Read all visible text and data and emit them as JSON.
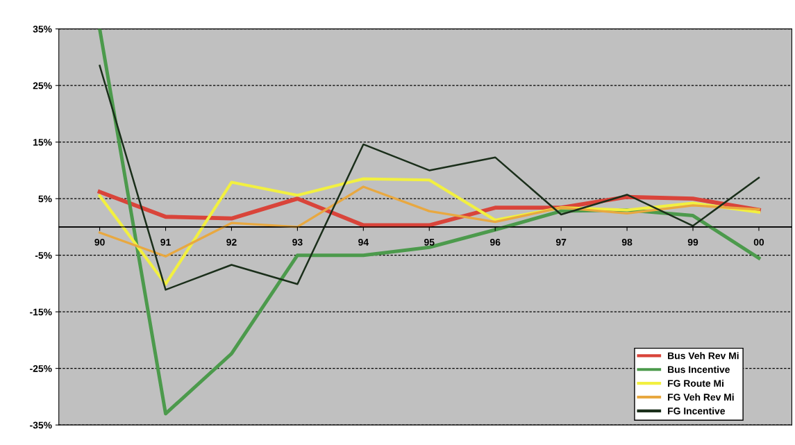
{
  "chart_data": {
    "type": "line",
    "categories": [
      "90",
      "91",
      "92",
      "93",
      "94",
      "95",
      "96",
      "97",
      "98",
      "99",
      "00"
    ],
    "series": [
      {
        "name": "Bus Veh Rev Mi",
        "color": "#d9443a",
        "values": [
          6.2,
          1.8,
          1.5,
          5.0,
          0.3,
          0.3,
          3.4,
          3.4,
          5.3,
          5.0,
          3.0
        ]
      },
      {
        "name": "Bus Incentive",
        "color": "#4c9a4c",
        "values": [
          35,
          -33,
          -22.4,
          -5,
          -5,
          -3.6,
          -0.5,
          2.8,
          3.0,
          2.0,
          -5.5
        ]
      },
      {
        "name": "FG Route Mi",
        "color": "#f2f040",
        "values": [
          5.5,
          -10.1,
          7.9,
          5.6,
          8.5,
          8.3,
          1.2,
          3.4,
          3.0,
          4.2,
          2.6
        ]
      },
      {
        "name": "FG Veh Rev Mi",
        "color": "#e8a840",
        "values": [
          -1,
          -5.2,
          0.7,
          0,
          7.1,
          2.8,
          0.9,
          3.4,
          2.4,
          3.8,
          3.1
        ]
      },
      {
        "name": "FG Incentive",
        "color": "#1a2e1a",
        "values": [
          28.5,
          -11.1,
          -6.7,
          -10.1,
          14.6,
          10,
          12.3,
          2.2,
          5.7,
          0.2,
          8.7
        ]
      }
    ],
    "ylim": [
      -35,
      35
    ],
    "yticks": [
      {
        "value": -35,
        "label": "-35%"
      },
      {
        "value": -25,
        "label": "-25%"
      },
      {
        "value": -15,
        "label": "-15%"
      },
      {
        "value": -5,
        "label": "-5%"
      },
      {
        "value": 5,
        "label": "5%"
      },
      {
        "value": 15,
        "label": "15%"
      },
      {
        "value": 25,
        "label": "25%"
      },
      {
        "value": 35,
        "label": "35%"
      }
    ],
    "grid": "y",
    "legend": "bottom right",
    "marker": "none",
    "line_style": "solid"
  }
}
